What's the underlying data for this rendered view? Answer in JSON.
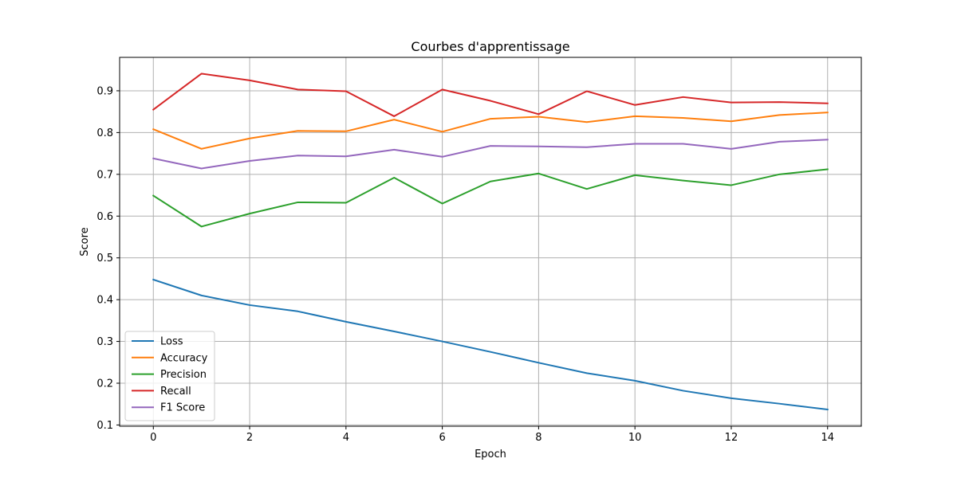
{
  "chart_data": {
    "type": "line",
    "title": "Courbes d'apprentissage",
    "xlabel": "Epoch",
    "ylabel": "Score",
    "x": [
      0,
      1,
      2,
      3,
      4,
      5,
      6,
      7,
      8,
      9,
      10,
      11,
      12,
      13,
      14
    ],
    "xlim": [
      -0.7,
      14.7
    ],
    "ylim": [
      0.097,
      0.98
    ],
    "xticks": [
      0,
      2,
      4,
      6,
      8,
      10,
      12,
      14
    ],
    "yticks": [
      0.1,
      0.2,
      0.3,
      0.4,
      0.5,
      0.6,
      0.7,
      0.8,
      0.9
    ],
    "grid": true,
    "legend_position": "lower-left",
    "series": [
      {
        "name": "Loss",
        "color": "#1f77b4",
        "values": [
          0.448,
          0.41,
          0.387,
          0.372,
          0.347,
          0.324,
          0.3,
          0.275,
          0.249,
          0.224,
          0.206,
          0.182,
          0.164,
          0.151,
          0.137
        ]
      },
      {
        "name": "Accuracy",
        "color": "#ff7f0e",
        "values": [
          0.808,
          0.761,
          0.786,
          0.804,
          0.803,
          0.831,
          0.802,
          0.833,
          0.838,
          0.825,
          0.839,
          0.835,
          0.827,
          0.842,
          0.848
        ]
      },
      {
        "name": "Precision",
        "color": "#2ca02c",
        "values": [
          0.649,
          0.575,
          0.606,
          0.633,
          0.632,
          0.692,
          0.63,
          0.683,
          0.702,
          0.665,
          0.698,
          0.685,
          0.674,
          0.7,
          0.712
        ]
      },
      {
        "name": "Recall",
        "color": "#d62728",
        "values": [
          0.855,
          0.941,
          0.925,
          0.903,
          0.899,
          0.839,
          0.903,
          0.876,
          0.844,
          0.899,
          0.866,
          0.885,
          0.872,
          0.873,
          0.87
        ]
      },
      {
        "name": "F1 Score",
        "color": "#9467bd",
        "values": [
          0.738,
          0.714,
          0.732,
          0.745,
          0.743,
          0.759,
          0.742,
          0.768,
          0.767,
          0.765,
          0.773,
          0.773,
          0.761,
          0.778,
          0.783
        ]
      }
    ]
  }
}
